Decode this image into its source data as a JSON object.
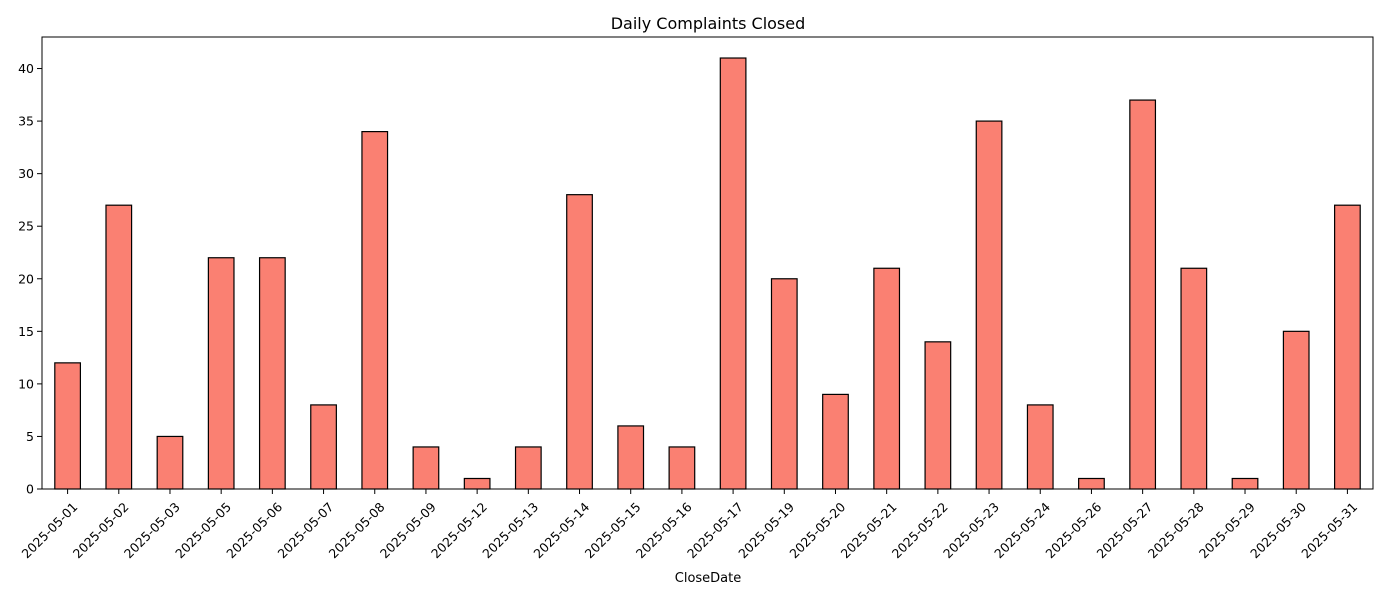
{
  "chart_data": {
    "type": "bar",
    "title": "Daily Complaints Closed",
    "xlabel": "CloseDate",
    "ylabel": "",
    "categories": [
      "2025-05-01",
      "2025-05-02",
      "2025-05-03",
      "2025-05-05",
      "2025-05-06",
      "2025-05-07",
      "2025-05-08",
      "2025-05-09",
      "2025-05-12",
      "2025-05-13",
      "2025-05-14",
      "2025-05-15",
      "2025-05-16",
      "2025-05-17",
      "2025-05-19",
      "2025-05-20",
      "2025-05-21",
      "2025-05-22",
      "2025-05-23",
      "2025-05-24",
      "2025-05-26",
      "2025-05-27",
      "2025-05-28",
      "2025-05-29",
      "2025-05-30",
      "2025-05-31"
    ],
    "values": [
      12,
      27,
      5,
      22,
      22,
      8,
      34,
      4,
      1,
      4,
      28,
      6,
      4,
      41,
      20,
      9,
      21,
      14,
      35,
      8,
      1,
      37,
      21,
      1,
      15,
      27
    ],
    "ylim": [
      0,
      43
    ],
    "yticks": [
      0,
      5,
      10,
      15,
      20,
      25,
      30,
      35,
      40
    ],
    "grid": false,
    "legend": "none",
    "colors": {
      "bar_fill": "#fa8072",
      "bar_edge": "#000000",
      "axis": "#000000",
      "background": "#ffffff"
    }
  }
}
